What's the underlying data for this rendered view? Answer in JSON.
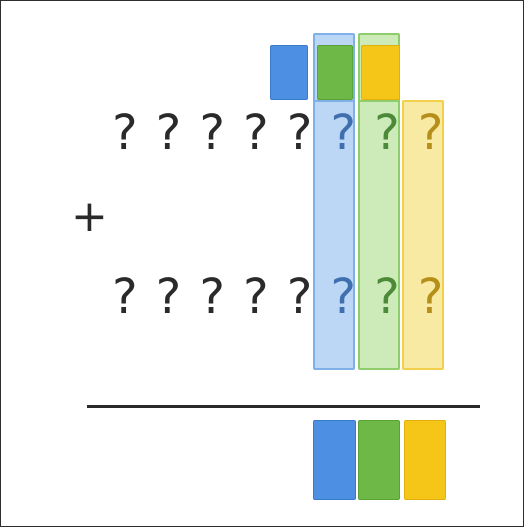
{
  "addend_1": {
    "digits": [
      "?",
      "?",
      "?",
      "?",
      "?",
      "?",
      "?",
      "?"
    ]
  },
  "addend_2": {
    "digits": [
      "?",
      "?",
      "?",
      "?",
      "?",
      "?",
      "?",
      "?"
    ]
  },
  "operator": "+",
  "colors": {
    "blue": "#4d90e3",
    "green": "#6db846",
    "yellow": "#f5c518",
    "blue_highlight": "#bcd7f6",
    "green_highlight": "#cdebb8",
    "yellow_highlight": "#f8eaa2"
  }
}
